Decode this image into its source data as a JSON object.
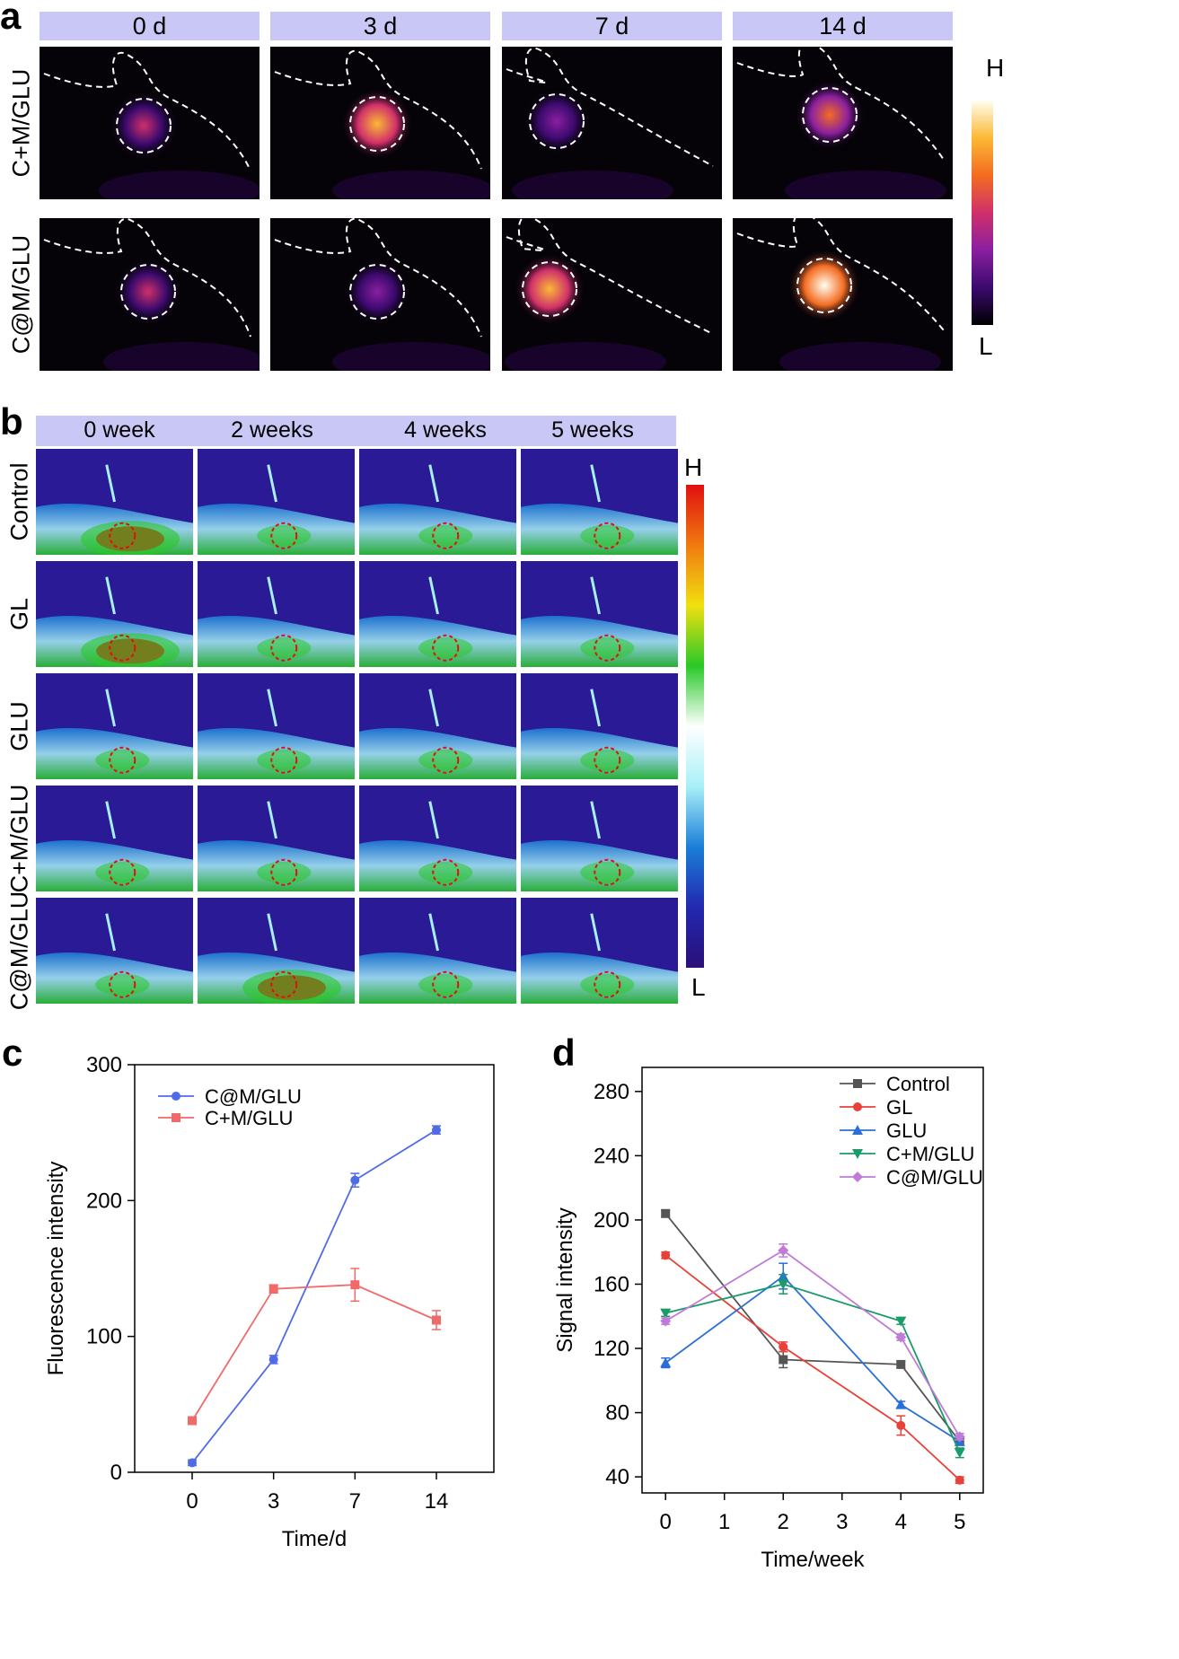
{
  "panel_a": {
    "letter": "a",
    "columns": [
      "0 d",
      "3 d",
      "7 d",
      "14 d"
    ],
    "rows": [
      "C+M/GLU",
      "C@M/GLU"
    ],
    "colorbar": {
      "high": "H",
      "low": "L"
    },
    "colormap": [
      "#000000",
      "#3b0a6e",
      "#8a1fa0",
      "#d0306a",
      "#f36c21",
      "#fbb935",
      "#fffef0"
    ],
    "signal_levels": [
      [
        0.55,
        0.85,
        0.35,
        0.7
      ],
      [
        0.5,
        0.3,
        0.8,
        1.0
      ]
    ]
  },
  "panel_b": {
    "letter": "b",
    "columns": [
      "0 week",
      "2 weeks",
      "4 weeks",
      "5 weeks"
    ],
    "rows": [
      "Control",
      "GL",
      "GLU",
      "C+M/GLU",
      "C@M/GLU"
    ],
    "colorbar": {
      "high": "H",
      "low": "L"
    },
    "colormap": [
      "#2a0f78",
      "#2228b0",
      "#1a7fd8",
      "#a8f0f8",
      "#ffffff",
      "#29c828",
      "#f0e010",
      "#f07a10",
      "#e01010"
    ]
  },
  "chart_data": [
    {
      "type": "line",
      "panel": "c",
      "xlabel": "Time/d",
      "ylabel": "Fluorescence intensity",
      "categories": [
        "0",
        "3",
        "7",
        "14"
      ],
      "ylim": [
        0,
        300
      ],
      "yticks": [
        0,
        100,
        200,
        300
      ],
      "legend": "top-left",
      "series": [
        {
          "name": "C@M/GLU",
          "color": "#4f6be6",
          "marker": "circle",
          "values": [
            7,
            83,
            215,
            252
          ],
          "errors": [
            2,
            3,
            5,
            3
          ]
        },
        {
          "name": "C+M/GLU",
          "color": "#f16a6a",
          "marker": "square",
          "values": [
            38,
            135,
            138,
            112
          ],
          "errors": [
            2,
            3,
            12,
            7
          ]
        }
      ]
    },
    {
      "type": "line",
      "panel": "d",
      "xlabel": "Time/week",
      "ylabel": "Signal intensity",
      "x": [
        0,
        2,
        4,
        5
      ],
      "xticks": [
        0,
        1,
        2,
        3,
        4,
        5
      ],
      "xlim": [
        -0.4,
        5.4
      ],
      "ylim": [
        30,
        295
      ],
      "yticks": [
        40,
        80,
        120,
        160,
        200,
        240,
        280
      ],
      "legend": "top-right",
      "series": [
        {
          "name": "Control",
          "color": "#555555",
          "marker": "square",
          "values": [
            204,
            113,
            110,
            62
          ],
          "errors": [
            2,
            5,
            2,
            2
          ]
        },
        {
          "name": "GL",
          "color": "#e8413a",
          "marker": "circle",
          "values": [
            178,
            121,
            72,
            38
          ],
          "errors": [
            2,
            3,
            6,
            2
          ]
        },
        {
          "name": "GLU",
          "color": "#2a6fd6",
          "marker": "triangle",
          "values": [
            111,
            165,
            85,
            62
          ],
          "errors": [
            3,
            8,
            2,
            2
          ]
        },
        {
          "name": "C+M/GLU",
          "color": "#1b9a6a",
          "marker": "triangle-down",
          "values": [
            142,
            160,
            137,
            55
          ],
          "errors": [
            2,
            6,
            2,
            3
          ]
        },
        {
          "name": "C@M/GLU",
          "color": "#c07ad8",
          "marker": "diamond",
          "values": [
            137,
            181,
            127,
            65
          ],
          "errors": [
            2,
            4,
            2,
            2
          ]
        }
      ]
    }
  ]
}
